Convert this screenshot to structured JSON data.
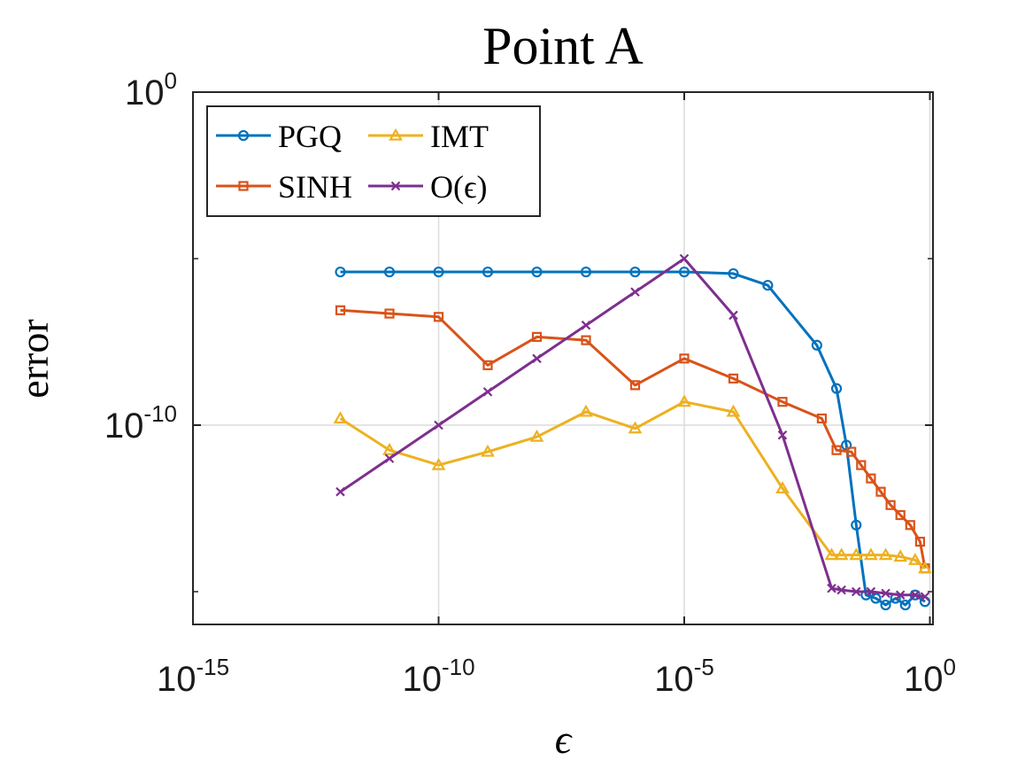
{
  "chart_data": {
    "type": "line",
    "title": "Point A",
    "xlabel": "ϵ",
    "ylabel": "error",
    "xscale": "log",
    "yscale": "log",
    "xlim_exp": [
      -15,
      0
    ],
    "ylim_exp": [
      -16,
      0
    ],
    "grid": true,
    "legend_position": "top-left",
    "x_ticks": [
      {
        "base": "10",
        "exp": "-15",
        "value_exp": -15
      },
      {
        "base": "10",
        "exp": "-10",
        "value_exp": -10
      },
      {
        "base": "10",
        "exp": "-5",
        "value_exp": -5
      },
      {
        "base": "10",
        "exp": "0",
        "value_exp": 0
      }
    ],
    "y_ticks": [
      {
        "base": "10",
        "exp": "0",
        "value_exp": 0
      },
      {
        "base": "10",
        "exp": "-10",
        "value_exp": -10
      }
    ],
    "y_minor_ticks_exp": [
      -5,
      -15
    ],
    "series": [
      {
        "name": "PGQ",
        "color": "#0072BD",
        "marker": "circle",
        "x_exp": [
          -12,
          -11,
          -10,
          -9,
          -8,
          -7,
          -6,
          -5,
          -4,
          -3.3,
          -2.3,
          -1.9,
          -1.7,
          -1.5,
          -1.3,
          -1.1,
          -0.9,
          -0.7,
          -0.5,
          -0.3,
          -0.1
        ],
        "y_exp": [
          -5.4,
          -5.4,
          -5.4,
          -5.4,
          -5.4,
          -5.4,
          -5.4,
          -5.4,
          -5.45,
          -5.8,
          -7.6,
          -8.9,
          -10.6,
          -13.0,
          -15.1,
          -15.2,
          -15.4,
          -15.2,
          -15.4,
          -15.1,
          -15.3
        ]
      },
      {
        "name": "SINH",
        "color": "#D95319",
        "marker": "square",
        "x_exp": [
          -12,
          -11,
          -10,
          -9,
          -8,
          -7,
          -6,
          -5,
          -4,
          -3,
          -2.2,
          -1.9,
          -1.6,
          -1.4,
          -1.2,
          -1.0,
          -0.8,
          -0.6,
          -0.4,
          -0.2,
          -0.1
        ],
        "y_exp": [
          -6.55,
          -6.65,
          -6.75,
          -8.2,
          -7.35,
          -7.45,
          -8.8,
          -8.0,
          -8.6,
          -9.3,
          -9.8,
          -10.75,
          -10.8,
          -11.2,
          -11.6,
          -12.0,
          -12.4,
          -12.7,
          -13.0,
          -13.5,
          -14.3
        ]
      },
      {
        "name": "IMT",
        "color": "#EDB120",
        "marker": "triangle",
        "x_exp": [
          -12,
          -11,
          -10,
          -9,
          -8,
          -7,
          -6,
          -5,
          -4,
          -3,
          -2,
          -1.8,
          -1.5,
          -1.2,
          -0.9,
          -0.6,
          -0.3,
          -0.1
        ],
        "y_exp": [
          -9.8,
          -10.75,
          -11.2,
          -10.8,
          -10.35,
          -9.6,
          -10.1,
          -9.3,
          -9.6,
          -11.9,
          -13.9,
          -13.9,
          -13.9,
          -13.9,
          -13.9,
          -13.95,
          -14.05,
          -14.3
        ]
      },
      {
        "name": "O(ϵ)",
        "color": "#7E2F8E",
        "marker": "x",
        "x_exp": [
          -12,
          -11,
          -10,
          -9,
          -8,
          -7,
          -6,
          -5,
          -4,
          -3,
          -2,
          -1.8,
          -1.5,
          -1.2,
          -0.9,
          -0.6,
          -0.3,
          -0.1
        ],
        "y_exp": [
          -12,
          -11,
          -10,
          -9,
          -8,
          -7,
          -6,
          -5,
          -6.7,
          -10.3,
          -14.9,
          -14.95,
          -15.0,
          -15.0,
          -15.05,
          -15.1,
          -15.1,
          -15.15
        ]
      }
    ]
  }
}
